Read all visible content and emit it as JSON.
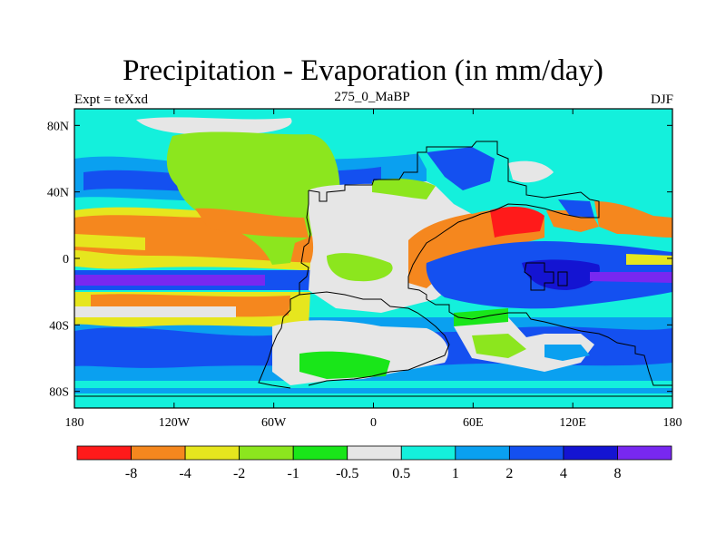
{
  "title": "Precipitation - Evaporation (in mm/day)",
  "subtitle_left": "Expt = teXxd",
  "subtitle_center": "275_0_MaBP",
  "subtitle_right": "DJF",
  "map": {
    "lon_range": [
      -180,
      180
    ],
    "lat_range": [
      -90,
      90
    ],
    "x_ticks": [
      "180",
      "120W",
      "60W",
      "0",
      "60E",
      "120E",
      "180"
    ],
    "y_ticks": [
      "80N",
      "40N",
      "0",
      "40S",
      "80S"
    ]
  },
  "colorbar": {
    "colors": [
      "#ff1a1a",
      "#f5871e",
      "#e6e61e",
      "#8ce61e",
      "#19e619",
      "#e6e6e6",
      "#14f0dc",
      "#0aa0f0",
      "#1450f0",
      "#1414d2",
      "#7828f0"
    ],
    "labels": [
      "-8",
      "-4",
      "-2",
      "-1",
      "-0.5",
      "0.5",
      "1",
      "2",
      "4",
      "8"
    ]
  }
}
